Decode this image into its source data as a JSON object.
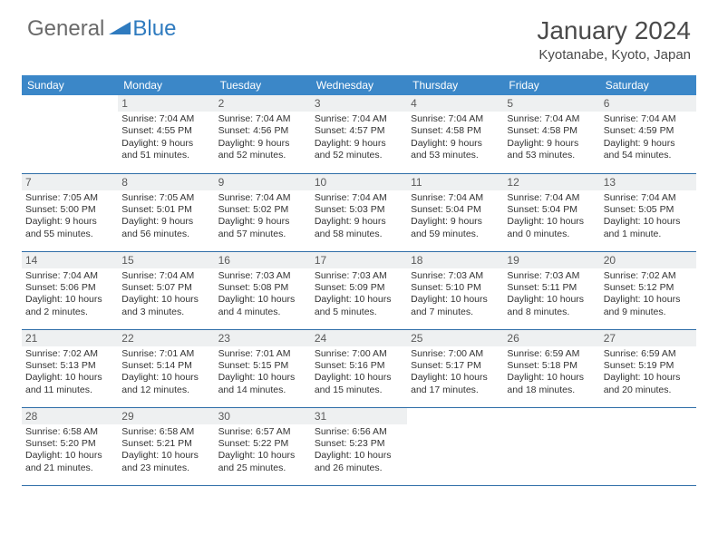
{
  "logo": {
    "text1": "General",
    "text2": "Blue",
    "color1": "#6a6a6a",
    "color2": "#2f7bbf",
    "shape_color": "#2f7bbf"
  },
  "title": "January 2024",
  "location": "Kyotanabe, Kyoto, Japan",
  "colors": {
    "header_bg": "#3b87c8",
    "header_text": "#ffffff",
    "daynum_bg": "#eef0f1",
    "row_border": "#2f6ea8",
    "body_text": "#333333"
  },
  "weekdays": [
    "Sunday",
    "Monday",
    "Tuesday",
    "Wednesday",
    "Thursday",
    "Friday",
    "Saturday"
  ],
  "start_offset": 1,
  "days": [
    {
      "n": 1,
      "sr": "7:04 AM",
      "ss": "4:55 PM",
      "dl": "9 hours and 51 minutes."
    },
    {
      "n": 2,
      "sr": "7:04 AM",
      "ss": "4:56 PM",
      "dl": "9 hours and 52 minutes."
    },
    {
      "n": 3,
      "sr": "7:04 AM",
      "ss": "4:57 PM",
      "dl": "9 hours and 52 minutes."
    },
    {
      "n": 4,
      "sr": "7:04 AM",
      "ss": "4:58 PM",
      "dl": "9 hours and 53 minutes."
    },
    {
      "n": 5,
      "sr": "7:04 AM",
      "ss": "4:58 PM",
      "dl": "9 hours and 53 minutes."
    },
    {
      "n": 6,
      "sr": "7:04 AM",
      "ss": "4:59 PM",
      "dl": "9 hours and 54 minutes."
    },
    {
      "n": 7,
      "sr": "7:05 AM",
      "ss": "5:00 PM",
      "dl": "9 hours and 55 minutes."
    },
    {
      "n": 8,
      "sr": "7:05 AM",
      "ss": "5:01 PM",
      "dl": "9 hours and 56 minutes."
    },
    {
      "n": 9,
      "sr": "7:04 AM",
      "ss": "5:02 PM",
      "dl": "9 hours and 57 minutes."
    },
    {
      "n": 10,
      "sr": "7:04 AM",
      "ss": "5:03 PM",
      "dl": "9 hours and 58 minutes."
    },
    {
      "n": 11,
      "sr": "7:04 AM",
      "ss": "5:04 PM",
      "dl": "9 hours and 59 minutes."
    },
    {
      "n": 12,
      "sr": "7:04 AM",
      "ss": "5:04 PM",
      "dl": "10 hours and 0 minutes."
    },
    {
      "n": 13,
      "sr": "7:04 AM",
      "ss": "5:05 PM",
      "dl": "10 hours and 1 minute."
    },
    {
      "n": 14,
      "sr": "7:04 AM",
      "ss": "5:06 PM",
      "dl": "10 hours and 2 minutes."
    },
    {
      "n": 15,
      "sr": "7:04 AM",
      "ss": "5:07 PM",
      "dl": "10 hours and 3 minutes."
    },
    {
      "n": 16,
      "sr": "7:03 AM",
      "ss": "5:08 PM",
      "dl": "10 hours and 4 minutes."
    },
    {
      "n": 17,
      "sr": "7:03 AM",
      "ss": "5:09 PM",
      "dl": "10 hours and 5 minutes."
    },
    {
      "n": 18,
      "sr": "7:03 AM",
      "ss": "5:10 PM",
      "dl": "10 hours and 7 minutes."
    },
    {
      "n": 19,
      "sr": "7:03 AM",
      "ss": "5:11 PM",
      "dl": "10 hours and 8 minutes."
    },
    {
      "n": 20,
      "sr": "7:02 AM",
      "ss": "5:12 PM",
      "dl": "10 hours and 9 minutes."
    },
    {
      "n": 21,
      "sr": "7:02 AM",
      "ss": "5:13 PM",
      "dl": "10 hours and 11 minutes."
    },
    {
      "n": 22,
      "sr": "7:01 AM",
      "ss": "5:14 PM",
      "dl": "10 hours and 12 minutes."
    },
    {
      "n": 23,
      "sr": "7:01 AM",
      "ss": "5:15 PM",
      "dl": "10 hours and 14 minutes."
    },
    {
      "n": 24,
      "sr": "7:00 AM",
      "ss": "5:16 PM",
      "dl": "10 hours and 15 minutes."
    },
    {
      "n": 25,
      "sr": "7:00 AM",
      "ss": "5:17 PM",
      "dl": "10 hours and 17 minutes."
    },
    {
      "n": 26,
      "sr": "6:59 AM",
      "ss": "5:18 PM",
      "dl": "10 hours and 18 minutes."
    },
    {
      "n": 27,
      "sr": "6:59 AM",
      "ss": "5:19 PM",
      "dl": "10 hours and 20 minutes."
    },
    {
      "n": 28,
      "sr": "6:58 AM",
      "ss": "5:20 PM",
      "dl": "10 hours and 21 minutes."
    },
    {
      "n": 29,
      "sr": "6:58 AM",
      "ss": "5:21 PM",
      "dl": "10 hours and 23 minutes."
    },
    {
      "n": 30,
      "sr": "6:57 AM",
      "ss": "5:22 PM",
      "dl": "10 hours and 25 minutes."
    },
    {
      "n": 31,
      "sr": "6:56 AM",
      "ss": "5:23 PM",
      "dl": "10 hours and 26 minutes."
    }
  ],
  "labels": {
    "sunrise": "Sunrise:",
    "sunset": "Sunset:",
    "daylight": "Daylight:"
  }
}
